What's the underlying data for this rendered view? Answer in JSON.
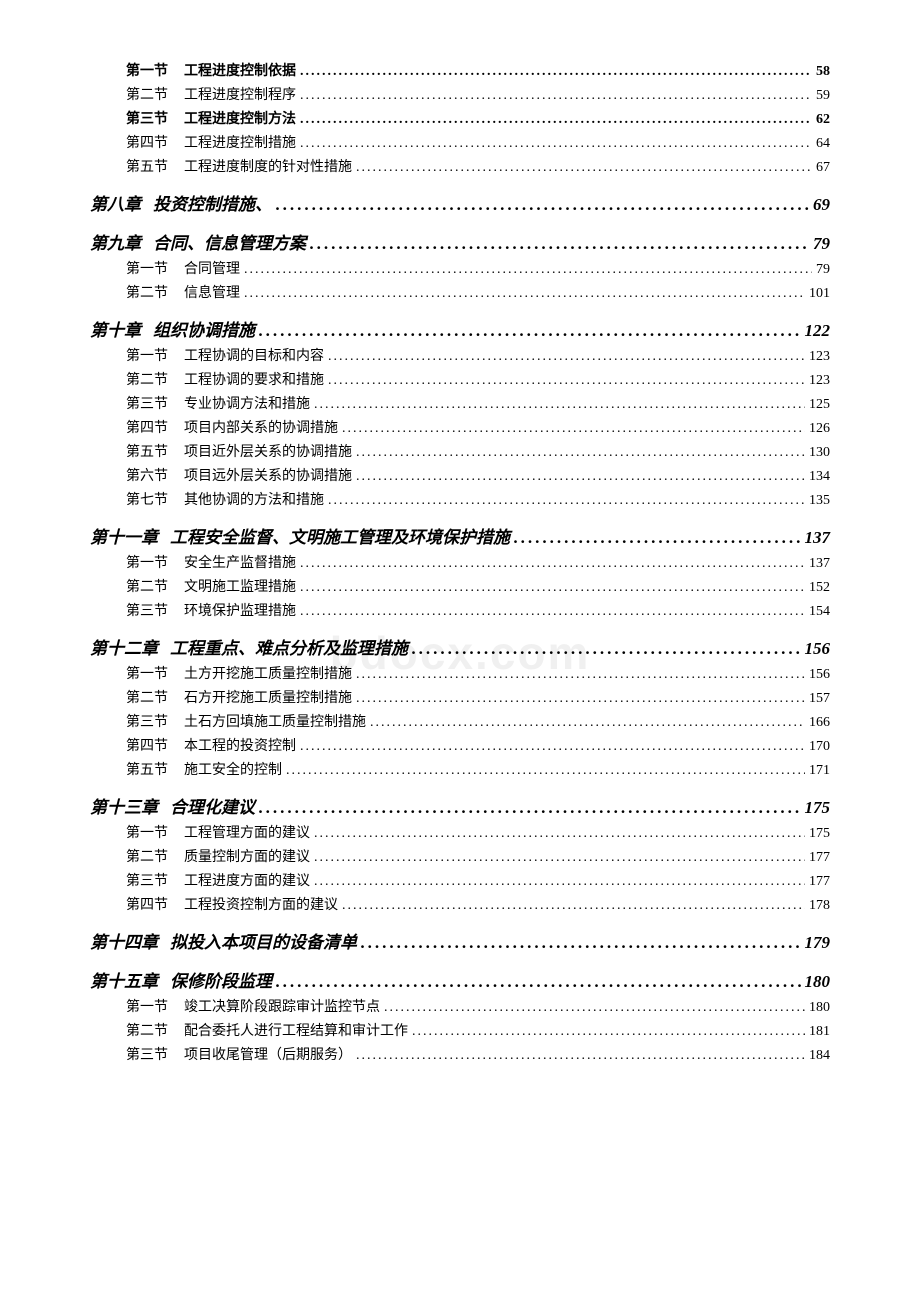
{
  "watermark": "bdocx.com",
  "dot_char_section": "........................................................................................................................",
  "dot_char_chapter": "........................................................................................",
  "entries": [
    {
      "type": "section",
      "bold": true,
      "prefix": "第一节",
      "label": "工程进度控制依据",
      "page": "58"
    },
    {
      "type": "section",
      "bold": false,
      "prefix": "第二节",
      "label": "工程进度控制程序",
      "page": "59"
    },
    {
      "type": "section",
      "bold": true,
      "prefix": "第三节",
      "label": "工程进度控制方法",
      "page": "62"
    },
    {
      "type": "section",
      "bold": false,
      "prefix": "第四节",
      "label": "工程进度控制措施",
      "page": "64"
    },
    {
      "type": "section",
      "bold": false,
      "prefix": "第五节",
      "label": "工程进度制度的针对性措施",
      "page": "67"
    },
    {
      "type": "chapter",
      "prefix": "第八章",
      "label": "投资控制措施、",
      "page": "69"
    },
    {
      "type": "chapter",
      "prefix": "第九章",
      "label": "合同、信息管理方案",
      "page": "79"
    },
    {
      "type": "section",
      "bold": false,
      "prefix": "第一节",
      "label": "合同管理",
      "page": "79"
    },
    {
      "type": "section",
      "bold": false,
      "prefix": "第二节",
      "label": "信息管理",
      "page": "101"
    },
    {
      "type": "chapter",
      "prefix": "第十章",
      "label": "组织协调措施",
      "page": "122"
    },
    {
      "type": "section",
      "bold": false,
      "prefix": "第一节",
      "label": "工程协调的目标和内容",
      "page": "123"
    },
    {
      "type": "section",
      "bold": false,
      "prefix": "第二节",
      "label": "工程协调的要求和措施",
      "page": "123"
    },
    {
      "type": "section",
      "bold": false,
      "prefix": "第三节",
      "label": "专业协调方法和措施",
      "page": "125"
    },
    {
      "type": "section",
      "bold": false,
      "prefix": "第四节",
      "label": "项目内部关系的协调措施",
      "page": "126"
    },
    {
      "type": "section",
      "bold": false,
      "prefix": "第五节",
      "label": "项目近外层关系的协调措施",
      "page": "130"
    },
    {
      "type": "section",
      "bold": false,
      "prefix": "第六节",
      "label": "项目远外层关系的协调措施",
      "page": "134"
    },
    {
      "type": "section",
      "bold": false,
      "prefix": "第七节",
      "label": "其他协调的方法和措施",
      "page": "135"
    },
    {
      "type": "chapter",
      "prefix": "第十一章",
      "label": "工程安全监督、文明施工管理及环境保护措施",
      "page": "137"
    },
    {
      "type": "section",
      "bold": false,
      "prefix": "第一节",
      "label": "安全生产监督措施",
      "page": "137"
    },
    {
      "type": "section",
      "bold": false,
      "prefix": "第二节",
      "label": "文明施工监理措施",
      "page": "152"
    },
    {
      "type": "section",
      "bold": false,
      "prefix": "第三节",
      "label": "环境保护监理措施",
      "page": "154"
    },
    {
      "type": "chapter",
      "prefix": "第十二章",
      "label": "工程重点、难点分析及监理措施",
      "page": "156"
    },
    {
      "type": "section",
      "bold": false,
      "prefix": "第一节",
      "label": "土方开挖施工质量控制措施",
      "page": "156"
    },
    {
      "type": "section",
      "bold": false,
      "prefix": "第二节",
      "label": "石方开挖施工质量控制措施",
      "page": "157"
    },
    {
      "type": "section",
      "bold": false,
      "prefix": "第三节",
      "label": "土石方回填施工质量控制措施",
      "page": "166"
    },
    {
      "type": "section",
      "bold": false,
      "prefix": "第四节",
      "label": "本工程的投资控制",
      "page": "170"
    },
    {
      "type": "section",
      "bold": false,
      "prefix": "第五节",
      "label": "施工安全的控制",
      "page": "171"
    },
    {
      "type": "chapter",
      "prefix": "第十三章",
      "label": "合理化建议",
      "page": "175"
    },
    {
      "type": "section",
      "bold": false,
      "prefix": "第一节",
      "label": "工程管理方面的建议",
      "page": "175"
    },
    {
      "type": "section",
      "bold": false,
      "prefix": "第二节",
      "label": "质量控制方面的建议",
      "page": "177"
    },
    {
      "type": "section",
      "bold": false,
      "prefix": "第三节",
      "label": "工程进度方面的建议",
      "page": "177"
    },
    {
      "type": "section",
      "bold": false,
      "prefix": "第四节",
      "label": "工程投资控制方面的建议",
      "page": "178"
    },
    {
      "type": "chapter",
      "prefix": "第十四章",
      "label": "拟投入本项目的设备清单",
      "page": "179"
    },
    {
      "type": "chapter",
      "prefix": "第十五章",
      "label": "保修阶段监理",
      "page": "180"
    },
    {
      "type": "section",
      "bold": false,
      "prefix": "第一节",
      "label": "竣工决算阶段跟踪审计监控节点",
      "page": "180"
    },
    {
      "type": "section",
      "bold": false,
      "prefix": "第二节",
      "label": "配合委托人进行工程结算和审计工作",
      "page": "181"
    },
    {
      "type": "section",
      "bold": false,
      "prefix": "第三节",
      "label": "项目收尾管理（后期服务）",
      "page": "184"
    }
  ]
}
